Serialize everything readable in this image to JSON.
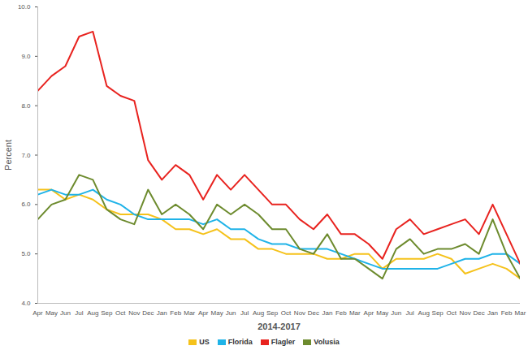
{
  "chart_data": {
    "type": "line",
    "x_label": "2014-2017",
    "y_label": "Percent",
    "categories": [
      "Apr",
      "May",
      "Jun",
      "Jul",
      "Aug",
      "Sep",
      "Oct",
      "Nov",
      "Dec",
      "Jan",
      "Feb",
      "Mar",
      "Apr",
      "May",
      "Jun",
      "Jul",
      "Aug",
      "Sep",
      "Oct",
      "Nov",
      "Dec",
      "Jan",
      "Feb",
      "Mar",
      "Apr",
      "May",
      "Jun",
      "Jul",
      "Aug",
      "Sep",
      "Oct",
      "Nov",
      "Dec",
      "Jan",
      "Feb",
      "Mar"
    ],
    "series": [
      {
        "name": "US",
        "color": "#f5c21b",
        "values": [
          6.3,
          6.3,
          6.1,
          6.2,
          6.1,
          5.9,
          5.8,
          5.8,
          5.8,
          5.7,
          5.5,
          5.5,
          5.4,
          5.5,
          5.3,
          5.3,
          5.1,
          5.1,
          5.0,
          5.0,
          5.0,
          4.9,
          4.9,
          5.0,
          5.0,
          4.7,
          4.9,
          4.9,
          4.9,
          5.0,
          4.9,
          4.6,
          4.7,
          4.8,
          4.7,
          4.5
        ]
      },
      {
        "name": "Florida",
        "color": "#1fb3e8",
        "values": [
          6.2,
          6.3,
          6.2,
          6.2,
          6.3,
          6.1,
          6.0,
          5.8,
          5.7,
          5.7,
          5.7,
          5.7,
          5.6,
          5.7,
          5.5,
          5.5,
          5.3,
          5.2,
          5.2,
          5.1,
          5.1,
          5.1,
          5.0,
          4.9,
          4.8,
          4.7,
          4.7,
          4.7,
          4.7,
          4.7,
          4.8,
          4.9,
          4.9,
          5.0,
          5.0,
          4.8
        ]
      },
      {
        "name": "Flagler",
        "color": "#e8231f",
        "values": [
          8.3,
          8.6,
          8.8,
          9.4,
          9.5,
          8.4,
          8.2,
          8.1,
          6.9,
          6.5,
          6.8,
          6.6,
          6.1,
          6.6,
          6.3,
          6.6,
          6.3,
          6.0,
          6.0,
          5.7,
          5.5,
          5.8,
          5.4,
          5.4,
          5.2,
          4.9,
          5.5,
          5.7,
          5.4,
          5.5,
          5.6,
          5.7,
          5.4,
          6.0,
          5.4,
          4.8
        ]
      },
      {
        "name": "Volusia",
        "color": "#6d8b2e",
        "values": [
          5.7,
          6.0,
          6.1,
          6.6,
          6.5,
          5.9,
          5.7,
          5.6,
          6.3,
          5.8,
          6.0,
          5.8,
          5.5,
          6.0,
          5.8,
          6.0,
          5.8,
          5.5,
          5.5,
          5.1,
          5.0,
          5.4,
          4.9,
          4.9,
          4.7,
          4.5,
          5.1,
          5.3,
          5.0,
          5.1,
          5.1,
          5.2,
          5.0,
          5.7,
          5.0,
          4.5
        ]
      }
    ],
    "ylim": [
      4,
      10
    ],
    "yticks": [
      {
        "value": 4,
        "label": "4.0"
      },
      {
        "value": 5,
        "label": "5.0"
      },
      {
        "value": 6,
        "label": "6.0"
      },
      {
        "value": 7,
        "label": "7.0"
      },
      {
        "value": 8,
        "label": "8.0"
      },
      {
        "value": 9,
        "label": "9.0"
      },
      {
        "value": 10,
        "label": "10.0"
      }
    ],
    "grid": false,
    "legend": "bottom"
  }
}
